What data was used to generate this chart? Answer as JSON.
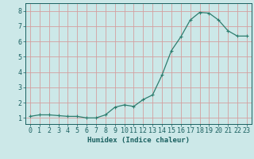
{
  "x": [
    0,
    1,
    2,
    3,
    4,
    5,
    6,
    7,
    8,
    9,
    10,
    11,
    12,
    13,
    14,
    15,
    16,
    17,
    18,
    19,
    20,
    21,
    22,
    23
  ],
  "y": [
    1.1,
    1.2,
    1.2,
    1.15,
    1.1,
    1.1,
    1.0,
    1.0,
    1.2,
    1.7,
    1.85,
    1.75,
    2.2,
    2.5,
    3.8,
    5.4,
    6.3,
    7.4,
    7.9,
    7.85,
    7.4,
    6.7,
    6.35,
    6.35
  ],
  "xlabel": "Humidex (Indice chaleur)",
  "line_color": "#2d7d6e",
  "bg_color": "#cce8e8",
  "grid_color": "#d4a0a0",
  "axis_color": "#1a6060",
  "tick_color": "#1a6060",
  "ylim": [
    0.6,
    8.5
  ],
  "xlim": [
    -0.5,
    23.5
  ],
  "yticks": [
    1,
    2,
    3,
    4,
    5,
    6,
    7,
    8
  ],
  "xticks": [
    0,
    1,
    2,
    3,
    4,
    5,
    6,
    7,
    8,
    9,
    10,
    11,
    12,
    13,
    14,
    15,
    16,
    17,
    18,
    19,
    20,
    21,
    22,
    23
  ],
  "xlabel_fontsize": 6.5,
  "tick_fontsize": 6
}
